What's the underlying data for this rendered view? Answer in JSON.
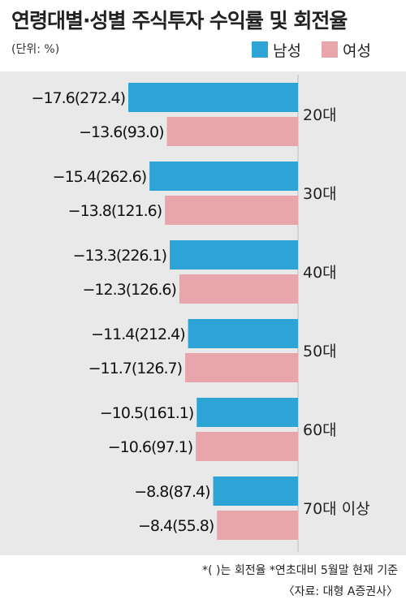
{
  "title": "연령대별·성별 주식투자 수익률 및 회전율",
  "unit": "(단위: %)",
  "legend": [
    {
      "name": "남성",
      "color": "#2ea3d5"
    },
    {
      "name": "여성",
      "color": "#e8a6ac"
    }
  ],
  "note": "*( )는 회전율 *연초대비 5월말 현재 기준",
  "source": "〈자료: 대형 A증권사〉",
  "chart_data": {
    "type": "bar",
    "orientation": "horizontal",
    "categories": [
      "20대",
      "30대",
      "40대",
      "50대",
      "60대",
      "70대 이상"
    ],
    "series": [
      {
        "name": "남성",
        "color": "#2ea3d5",
        "values": [
          -17.6,
          -15.4,
          -13.3,
          -11.4,
          -10.5,
          -8.8
        ],
        "turnover": [
          272.4,
          262.6,
          226.1,
          212.4,
          161.1,
          87.4
        ],
        "labels": [
          "−17.6(272.4)",
          "−15.4(262.6)",
          "−13.3(226.1)",
          "−11.4(212.4)",
          "−10.5(161.1)",
          "−8.8(87.4)"
        ]
      },
      {
        "name": "여성",
        "color": "#e8a6ac",
        "values": [
          -13.6,
          -13.8,
          -12.3,
          -11.7,
          -10.6,
          -8.4
        ],
        "turnover": [
          93.0,
          121.6,
          126.6,
          126.7,
          97.1,
          55.8
        ],
        "labels": [
          "−13.6(93.0)",
          "−13.8(121.6)",
          "−12.3(126.6)",
          "−11.7(126.7)",
          "−10.6(97.1)",
          "−8.4(55.8)"
        ]
      }
    ],
    "xlim": [
      -17.6,
      0
    ]
  }
}
